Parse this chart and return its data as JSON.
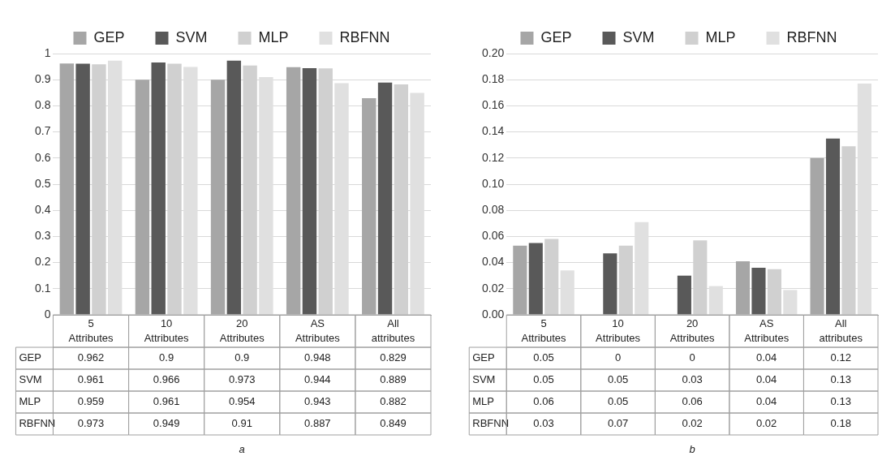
{
  "chart_data": [
    {
      "type": "bar",
      "categories": [
        "5 Attributes",
        "10 Attributes",
        "20 Attributes",
        "AS Attributes",
        "All attributes"
      ],
      "series": [
        {
          "name": "GEP",
          "color": "#a6a6a6",
          "values": [
            0.962,
            0.9,
            0.9,
            0.948,
            0.829
          ]
        },
        {
          "name": "SVM",
          "color": "#595959",
          "values": [
            0.961,
            0.966,
            0.973,
            0.944,
            0.889
          ]
        },
        {
          "name": "MLP",
          "color": "#d0d0d0",
          "values": [
            0.959,
            0.961,
            0.954,
            0.943,
            0.882
          ]
        },
        {
          "name": "RBFNN",
          "color": "#e0e0e0",
          "values": [
            0.973,
            0.949,
            0.91,
            0.887,
            0.849
          ]
        }
      ],
      "ylim": [
        0,
        1
      ],
      "yticks": [
        0,
        0.1,
        0.2,
        0.3,
        0.4,
        0.5,
        0.6,
        0.7,
        0.8,
        0.9,
        1
      ],
      "grid": "y",
      "legend": "top",
      "data_labels": true,
      "annotations": [
        "a"
      ]
    },
    {
      "type": "bar",
      "categories": [
        "5 Attributes",
        "10 Attributes",
        "20 Attributes",
        "AS Attributes",
        "All attributes"
      ],
      "series": [
        {
          "name": "GEP",
          "color": "#a6a6a6",
          "values": [
            0.053,
            0,
            0,
            0.041,
            0.12
          ],
          "value_labels": [
            "0.05",
            "0",
            "0",
            "0.04",
            "0.12"
          ]
        },
        {
          "name": "SVM",
          "color": "#595959",
          "values": [
            0.055,
            0.047,
            0.03,
            0.036,
            0.135
          ],
          "value_labels": [
            "0.05",
            "0.05",
            "0.03",
            "0.04",
            "0.13"
          ]
        },
        {
          "name": "MLP",
          "color": "#d0d0d0",
          "values": [
            0.058,
            0.053,
            0.057,
            0.035,
            0.129
          ],
          "value_labels": [
            "0.06",
            "0.05",
            "0.06",
            "0.04",
            "0.13"
          ]
        },
        {
          "name": "RBFNN",
          "color": "#e0e0e0",
          "values": [
            0.034,
            0.071,
            0.022,
            0.019,
            0.177
          ],
          "value_labels": [
            "0.03",
            "0.07",
            "0.02",
            "0.02",
            "0.18"
          ]
        }
      ],
      "ylim": [
        0,
        0.2
      ],
      "yticks": [
        {
          "value": 0,
          "label": "0.00"
        },
        {
          "value": 0.02,
          "label": "0.02"
        },
        {
          "value": 0.04,
          "label": "0.04"
        },
        {
          "value": 0.06,
          "label": "0.06"
        },
        {
          "value": 0.08,
          "label": "0.08"
        },
        {
          "value": 0.1,
          "label": "0.10"
        },
        {
          "value": 0.12,
          "label": "0.12"
        },
        {
          "value": 0.14,
          "label": "0.14"
        },
        {
          "value": 0.16,
          "label": "0.16"
        },
        {
          "value": 0.18,
          "label": "0.18"
        },
        {
          "value": 0.2,
          "label": "0.20"
        }
      ],
      "grid": "y",
      "legend": "top",
      "annotations": [
        "b"
      ]
    }
  ]
}
